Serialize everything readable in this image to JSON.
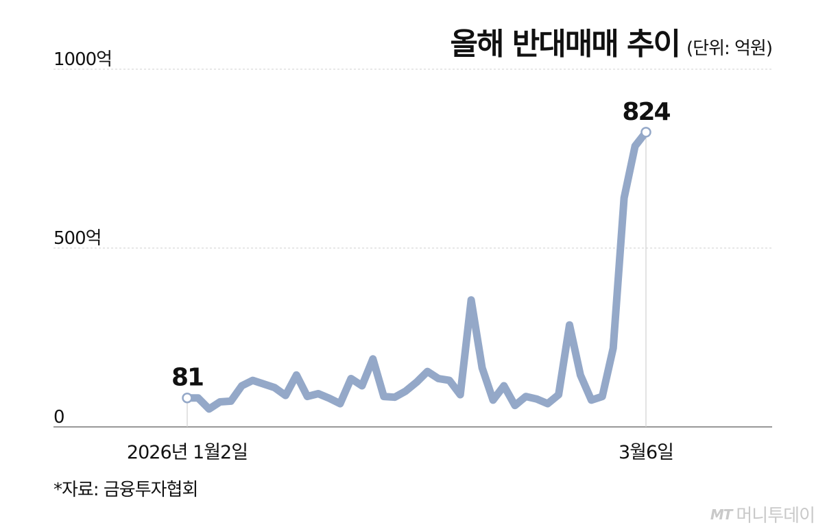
{
  "chart_data": {
    "type": "line",
    "title": "올해 반대매매 추이",
    "unit": "(단위: 억원)",
    "y_ticks": [
      {
        "value": 0,
        "label": "0"
      },
      {
        "value": 500,
        "label": "500억"
      },
      {
        "value": 1000,
        "label": "1000억"
      }
    ],
    "ylim": [
      0,
      1000
    ],
    "grid": true,
    "x_labels": [
      {
        "index": 0,
        "label": "2026년 1월2일"
      },
      {
        "index": 43,
        "label": "3월6일"
      }
    ],
    "series": [
      {
        "color": "#94a8c8",
        "values": [
          81,
          81,
          50,
          70,
          72,
          115,
          130,
          120,
          110,
          88,
          145,
          85,
          93,
          80,
          65,
          135,
          115,
          190,
          85,
          83,
          100,
          125,
          155,
          135,
          130,
          90,
          355,
          165,
          75,
          115,
          60,
          85,
          78,
          65,
          90,
          285,
          145,
          75,
          85,
          220,
          640,
          785,
          824
        ]
      }
    ],
    "data_labels": [
      {
        "index": 0,
        "label": "81"
      },
      {
        "index": 42,
        "label": "824"
      }
    ]
  },
  "source": "*자료: 금융투자협회",
  "brand": {
    "mark": "MT",
    "name": "머니투데이"
  }
}
